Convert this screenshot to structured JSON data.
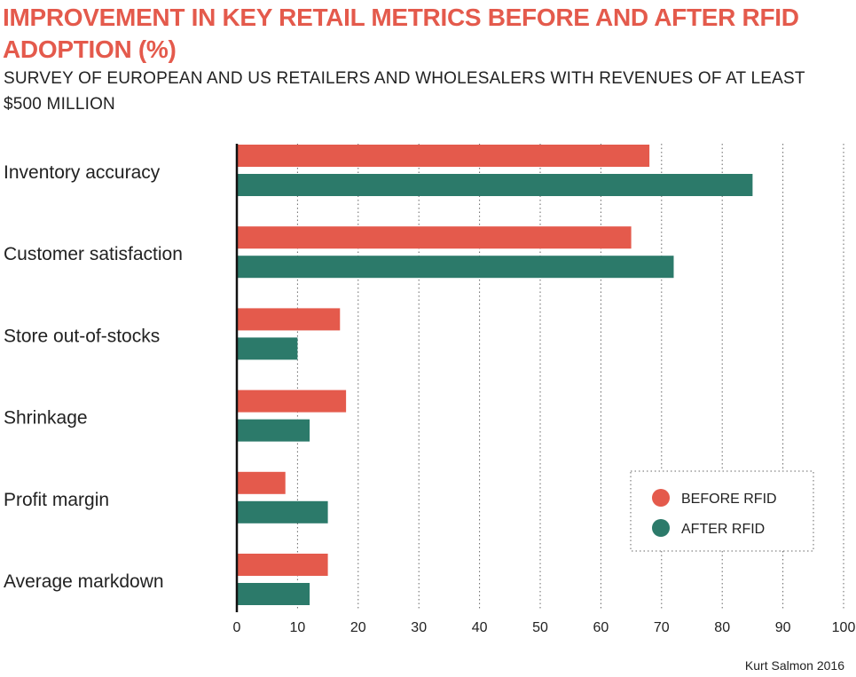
{
  "chart_data": {
    "type": "bar",
    "orientation": "horizontal",
    "title": "IMPROVEMENT IN KEY RETAIL METRICS BEFORE AND AFTER RFID ADOPTION (%)",
    "subtitle": "SURVEY OF EUROPEAN AND US RETAILERS AND WHOLESALERS WITH REVENUES OF AT LEAST $500 MILLION",
    "categories": [
      "Inventory accuracy",
      "Customer satisfaction",
      "Store out-of-stocks",
      "Shrinkage",
      "Profit margin",
      "Average markdown"
    ],
    "series": [
      {
        "name": "BEFORE RFID",
        "color": "#e45a4c",
        "values": [
          68,
          65,
          17,
          18,
          8,
          15
        ]
      },
      {
        "name": "AFTER RFID",
        "color": "#2c7a6a",
        "values": [
          85,
          72,
          10,
          12,
          15,
          12
        ]
      }
    ],
    "xlim": [
      0,
      100
    ],
    "xticks": [
      0,
      10,
      20,
      30,
      40,
      50,
      60,
      70,
      80,
      90,
      100
    ],
    "grid": "vertical dotted",
    "legend_position": "bottom-right",
    "source": "Kurt Salmon 2016"
  }
}
